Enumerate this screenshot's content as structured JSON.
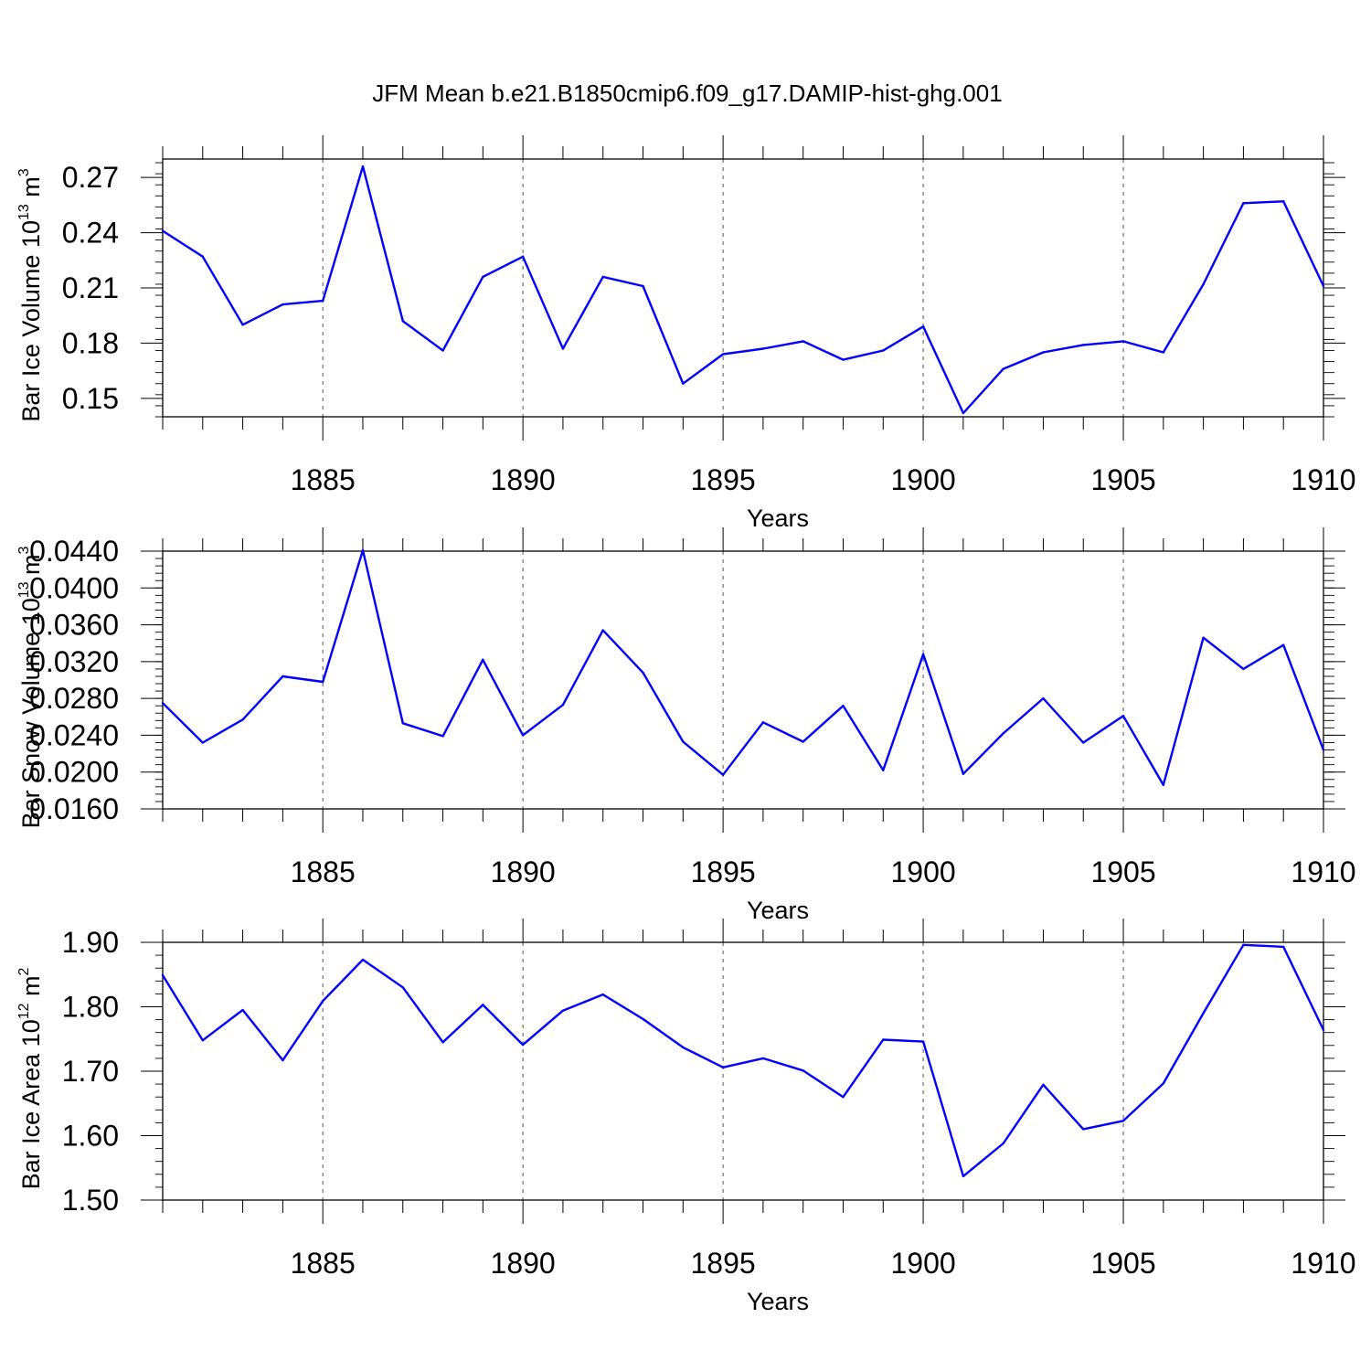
{
  "figure": {
    "title": "JFM Mean b.e21.B1850cmip6.f09_g17.DAMIP-hist-ghg.001"
  },
  "colors": {
    "series": "#0000ff",
    "axes": "#000000",
    "grid": "#555555"
  },
  "chart_data": [
    {
      "type": "line",
      "name": "ice-volume",
      "ylabel": "Bar Ice Volume 10",
      "ylabel_exp1": "13",
      "ylabel_unit": " m",
      "ylabel_exp2": "3",
      "xlabel": "Years",
      "xlim": [
        1881,
        1910
      ],
      "ylim": [
        0.14,
        0.28
      ],
      "major_xticks": [
        1885,
        1890,
        1895,
        1900,
        1905,
        1910
      ],
      "xtick_labels": [
        "1885",
        "1890",
        "1895",
        "1900",
        "1905",
        "1910"
      ],
      "yticks": [
        0.15,
        0.18,
        0.21,
        0.24,
        0.27
      ],
      "ytick_labels": [
        "0.15",
        "0.18",
        "0.21",
        "0.24",
        "0.27"
      ],
      "ytick_minor_step": 0.006,
      "grid": "dashed vertical lines at major x ticks",
      "x": [
        1881,
        1882,
        1883,
        1884,
        1885,
        1886,
        1887,
        1888,
        1889,
        1890,
        1891,
        1892,
        1893,
        1894,
        1895,
        1896,
        1897,
        1898,
        1899,
        1900,
        1901,
        1902,
        1903,
        1904,
        1905,
        1906,
        1907,
        1908,
        1909,
        1910
      ],
      "y": [
        0.241,
        0.227,
        0.19,
        0.201,
        0.203,
        0.276,
        0.192,
        0.176,
        0.216,
        0.227,
        0.177,
        0.216,
        0.211,
        0.158,
        0.174,
        0.177,
        0.181,
        0.171,
        0.176,
        0.189,
        0.142,
        0.166,
        0.175,
        0.179,
        0.181,
        0.175,
        0.212,
        0.256,
        0.257,
        0.211
      ]
    },
    {
      "type": "line",
      "name": "snow-volume",
      "ylabel": "Bar Snow Volume 10",
      "ylabel_exp1": "13",
      "ylabel_unit": " m",
      "ylabel_exp2": "3",
      "xlabel": "Years",
      "xlim": [
        1881,
        1910
      ],
      "ylim": [
        0.016,
        0.044
      ],
      "major_xticks": [
        1885,
        1890,
        1895,
        1900,
        1905,
        1910
      ],
      "xtick_labels": [
        "1885",
        "1890",
        "1895",
        "1900",
        "1905",
        "1910"
      ],
      "yticks": [
        0.016,
        0.02,
        0.024,
        0.028,
        0.032,
        0.036,
        0.04,
        0.044
      ],
      "ytick_labels": [
        "0.0160",
        "0.0200",
        "0.0240",
        "0.0280",
        "0.0320",
        "0.0360",
        "0.0400",
        "0.0440"
      ],
      "ytick_minor_step": 0.0008,
      "grid": "dashed vertical lines at major x ticks",
      "x": [
        1881,
        1882,
        1883,
        1884,
        1885,
        1886,
        1887,
        1888,
        1889,
        1890,
        1891,
        1892,
        1893,
        1894,
        1895,
        1896,
        1897,
        1898,
        1899,
        1900,
        1901,
        1902,
        1903,
        1904,
        1905,
        1906,
        1907,
        1908,
        1909,
        1910
      ],
      "y": [
        0.0275,
        0.0232,
        0.0257,
        0.0304,
        0.0298,
        0.0441,
        0.0253,
        0.0239,
        0.0322,
        0.024,
        0.0273,
        0.0354,
        0.0308,
        0.0233,
        0.0197,
        0.0254,
        0.0233,
        0.0272,
        0.0202,
        0.0328,
        0.0198,
        0.0242,
        0.028,
        0.0232,
        0.0261,
        0.0186,
        0.0346,
        0.0312,
        0.0338,
        0.0224
      ]
    },
    {
      "type": "line",
      "name": "ice-area",
      "ylabel": "Bar Ice Area 10",
      "ylabel_exp1": "12",
      "ylabel_unit": " m",
      "ylabel_exp2": "2",
      "xlabel": "Years",
      "xlim": [
        1881,
        1910
      ],
      "ylim": [
        1.5,
        1.9
      ],
      "major_xticks": [
        1885,
        1890,
        1895,
        1900,
        1905,
        1910
      ],
      "xtick_labels": [
        "1885",
        "1890",
        "1895",
        "1900",
        "1905",
        "1910"
      ],
      "yticks": [
        1.5,
        1.6,
        1.7,
        1.8,
        1.9
      ],
      "ytick_labels": [
        "1.50",
        "1.60",
        "1.70",
        "1.80",
        "1.90"
      ],
      "ytick_minor_step": 0.02,
      "grid": "dashed vertical lines at major x ticks",
      "x": [
        1881,
        1882,
        1883,
        1884,
        1885,
        1886,
        1887,
        1888,
        1889,
        1890,
        1891,
        1892,
        1893,
        1894,
        1895,
        1896,
        1897,
        1898,
        1899,
        1900,
        1901,
        1902,
        1903,
        1904,
        1905,
        1906,
        1907,
        1908,
        1909,
        1910
      ],
      "y": [
        1.849,
        1.748,
        1.795,
        1.717,
        1.809,
        1.873,
        1.83,
        1.745,
        1.803,
        1.741,
        1.794,
        1.819,
        1.781,
        1.737,
        1.706,
        1.72,
        1.701,
        1.66,
        1.749,
        1.746,
        1.537,
        1.588,
        1.679,
        1.61,
        1.623,
        1.681,
        1.79,
        1.896,
        1.893,
        1.764
      ]
    }
  ]
}
